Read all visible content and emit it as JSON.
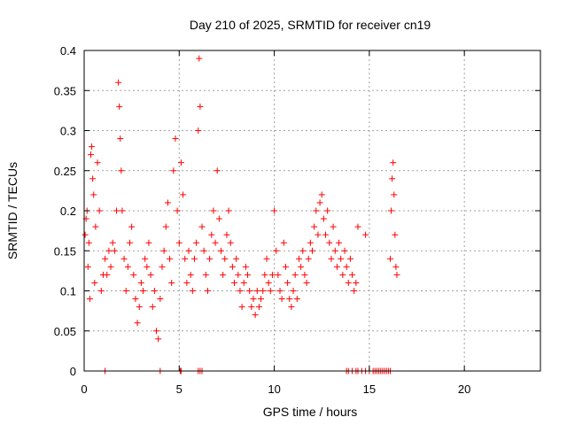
{
  "chart_data": {
    "type": "scatter",
    "title": "Day 210 of 2025, SRMTID for receiver cn19",
    "xlabel": "GPS time / hours",
    "ylabel": "SRMTID / TECUs",
    "xlim": [
      0,
      24
    ],
    "ylim": [
      0,
      0.4
    ],
    "x_ticks": [
      0,
      5,
      10,
      15,
      20
    ],
    "x_tick_labels": [
      "0",
      "5",
      "10",
      "15",
      "20"
    ],
    "y_ticks": [
      0,
      0.05,
      0.1,
      0.15,
      0.2,
      0.25,
      0.3,
      0.35,
      0.4
    ],
    "y_tick_labels": [
      "0",
      "0.05",
      "0.1",
      "0.15",
      "0.2",
      "0.25",
      "0.3",
      "0.35",
      "0.4"
    ],
    "grid": true,
    "legend": "none",
    "marker": "plus",
    "series": [
      {
        "name": "SRMTID",
        "color": "#ff0000",
        "marker": "+",
        "points": [
          [
            0.05,
            0.17
          ],
          [
            0.1,
            0.19
          ],
          [
            0.15,
            0.2
          ],
          [
            0.2,
            0.13
          ],
          [
            0.25,
            0.16
          ],
          [
            0.3,
            0.09
          ],
          [
            0.35,
            0.27
          ],
          [
            0.4,
            0.28
          ],
          [
            0.45,
            0.24
          ],
          [
            0.5,
            0.22
          ],
          [
            0.55,
            0.11
          ],
          [
            0.6,
            0.18
          ],
          [
            0.7,
            0.26
          ],
          [
            0.8,
            0.2
          ],
          [
            0.9,
            0.1
          ],
          [
            1.0,
            0.12
          ],
          [
            1.1,
            0.14
          ],
          [
            1.2,
            0.12
          ],
          [
            1.3,
            0.15
          ],
          [
            1.4,
            0.13
          ],
          [
            1.5,
            0.16
          ],
          [
            1.6,
            0.15
          ],
          [
            1.7,
            0.2
          ],
          [
            1.8,
            0.36
          ],
          [
            1.85,
            0.33
          ],
          [
            1.9,
            0.29
          ],
          [
            1.95,
            0.25
          ],
          [
            2.0,
            0.2
          ],
          [
            2.1,
            0.14
          ],
          [
            2.2,
            0.1
          ],
          [
            2.3,
            0.13
          ],
          [
            2.4,
            0.16
          ],
          [
            2.5,
            0.18
          ],
          [
            2.6,
            0.12
          ],
          [
            2.7,
            0.09
          ],
          [
            2.8,
            0.06
          ],
          [
            2.9,
            0.08
          ],
          [
            3.0,
            0.11
          ],
          [
            3.1,
            0.1
          ],
          [
            3.2,
            0.14
          ],
          [
            3.3,
            0.13
          ],
          [
            3.4,
            0.16
          ],
          [
            3.5,
            0.12
          ],
          [
            3.6,
            0.08
          ],
          [
            3.7,
            0.1
          ],
          [
            3.8,
            0.05
          ],
          [
            3.9,
            0.04
          ],
          [
            4.0,
            0.09
          ],
          [
            4.1,
            0.13
          ],
          [
            4.2,
            0.15
          ],
          [
            4.3,
            0.18
          ],
          [
            4.4,
            0.21
          ],
          [
            4.5,
            0.14
          ],
          [
            4.6,
            0.11
          ],
          [
            4.7,
            0.25
          ],
          [
            4.8,
            0.29
          ],
          [
            4.9,
            0.2
          ],
          [
            5.0,
            0.16
          ],
          [
            5.1,
            0.26
          ],
          [
            5.2,
            0.22
          ],
          [
            5.3,
            0.14
          ],
          [
            5.4,
            0.11
          ],
          [
            5.5,
            0.15
          ],
          [
            5.6,
            0.12
          ],
          [
            5.7,
            0.1
          ],
          [
            5.8,
            0.14
          ],
          [
            5.9,
            0.16
          ],
          [
            6.0,
            0.3
          ],
          [
            6.05,
            0.39
          ],
          [
            6.1,
            0.33
          ],
          [
            6.2,
            0.18
          ],
          [
            6.3,
            0.15
          ],
          [
            6.4,
            0.12
          ],
          [
            6.5,
            0.1
          ],
          [
            6.6,
            0.14
          ],
          [
            6.7,
            0.17
          ],
          [
            6.8,
            0.2
          ],
          [
            6.9,
            0.16
          ],
          [
            7.0,
            0.25
          ],
          [
            7.1,
            0.19
          ],
          [
            7.2,
            0.15
          ],
          [
            7.3,
            0.12
          ],
          [
            7.4,
            0.14
          ],
          [
            7.5,
            0.17
          ],
          [
            7.6,
            0.2
          ],
          [
            7.7,
            0.16
          ],
          [
            7.8,
            0.13
          ],
          [
            7.9,
            0.11
          ],
          [
            8.0,
            0.14
          ],
          [
            8.1,
            0.12
          ],
          [
            8.2,
            0.1
          ],
          [
            8.3,
            0.08
          ],
          [
            8.4,
            0.11
          ],
          [
            8.5,
            0.13
          ],
          [
            8.6,
            0.12
          ],
          [
            8.7,
            0.1
          ],
          [
            8.8,
            0.08
          ],
          [
            8.9,
            0.09
          ],
          [
            9.0,
            0.07
          ],
          [
            9.1,
            0.1
          ],
          [
            9.2,
            0.08
          ],
          [
            9.3,
            0.09
          ],
          [
            9.4,
            0.1
          ],
          [
            9.5,
            0.12
          ],
          [
            9.6,
            0.14
          ],
          [
            9.7,
            0.11
          ],
          [
            9.8,
            0.1
          ],
          [
            9.9,
            0.12
          ],
          [
            10.0,
            0.2
          ],
          [
            10.1,
            0.15
          ],
          [
            10.2,
            0.12
          ],
          [
            10.3,
            0.1
          ],
          [
            10.4,
            0.09
          ],
          [
            10.5,
            0.16
          ],
          [
            10.6,
            0.13
          ],
          [
            10.7,
            0.11
          ],
          [
            10.8,
            0.09
          ],
          [
            10.9,
            0.08
          ],
          [
            11.0,
            0.1
          ],
          [
            11.1,
            0.12
          ],
          [
            11.2,
            0.09
          ],
          [
            11.3,
            0.14
          ],
          [
            11.4,
            0.13
          ],
          [
            11.5,
            0.15
          ],
          [
            11.6,
            0.12
          ],
          [
            11.7,
            0.11
          ],
          [
            11.8,
            0.14
          ],
          [
            11.9,
            0.16
          ],
          [
            12.0,
            0.15
          ],
          [
            12.1,
            0.18
          ],
          [
            12.2,
            0.2
          ],
          [
            12.3,
            0.17
          ],
          [
            12.4,
            0.21
          ],
          [
            12.5,
            0.22
          ],
          [
            12.6,
            0.19
          ],
          [
            12.7,
            0.17
          ],
          [
            12.8,
            0.2
          ],
          [
            12.9,
            0.16
          ],
          [
            13.0,
            0.14
          ],
          [
            13.1,
            0.18
          ],
          [
            13.2,
            0.15
          ],
          [
            13.3,
            0.13
          ],
          [
            13.4,
            0.16
          ],
          [
            13.5,
            0.14
          ],
          [
            13.6,
            0.12
          ],
          [
            13.7,
            0.15
          ],
          [
            13.8,
            0.13
          ],
          [
            13.9,
            0.11
          ],
          [
            14.0,
            0.14
          ],
          [
            14.1,
            0.12
          ],
          [
            14.2,
            0.1
          ],
          [
            14.3,
            0.11
          ],
          [
            14.4,
            0.18
          ],
          [
            14.8,
            0.17
          ],
          [
            16.1,
            0.14
          ],
          [
            16.15,
            0.2
          ],
          [
            16.2,
            0.24
          ],
          [
            16.25,
            0.26
          ],
          [
            16.3,
            0.22
          ],
          [
            16.35,
            0.17
          ],
          [
            16.4,
            0.13
          ],
          [
            16.45,
            0.12
          ]
        ]
      }
    ],
    "zero_points_x": [
      1.1,
      4.0,
      5.05,
      5.1,
      6.0,
      6.1,
      6.2,
      13.8,
      13.9,
      14.1,
      14.3,
      14.4,
      14.6,
      14.8,
      15.0,
      15.2,
      15.3,
      15.4,
      15.5,
      15.6,
      15.7,
      15.8,
      15.9,
      16.0,
      16.1
    ]
  }
}
